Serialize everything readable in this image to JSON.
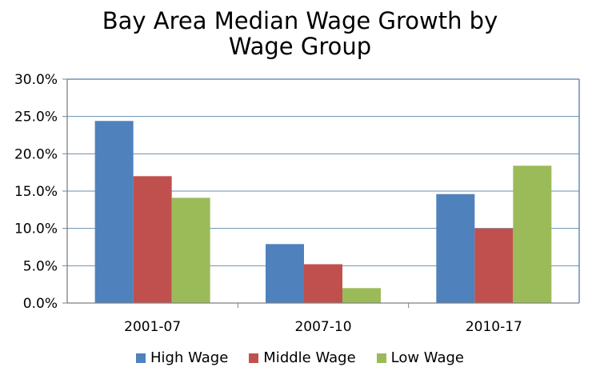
{
  "chart_data": {
    "type": "bar",
    "title_lines": [
      "Bay Area Median Wage Growth by",
      "Wage Group"
    ],
    "categories": [
      "2001-07",
      "2007-10",
      "2010-17"
    ],
    "series": [
      {
        "name": "High Wage",
        "values": [
          24.4,
          7.9,
          14.6
        ],
        "color": "#4F81BD"
      },
      {
        "name": "Middle Wage",
        "values": [
          17.0,
          5.2,
          10.0
        ],
        "color": "#C0504D"
      },
      {
        "name": "Low Wage",
        "values": [
          14.1,
          2.0,
          18.4
        ],
        "color": "#9BBB59"
      }
    ],
    "ylim": [
      0,
      30
    ],
    "yticks": [
      0,
      5,
      10,
      15,
      20,
      25,
      30
    ],
    "ytick_labels": [
      "0.0%",
      "5.0%",
      "10.0%",
      "15.0%",
      "20.0%",
      "25.0%",
      "30.0%"
    ],
    "grid": true,
    "legend_position": "bottom"
  }
}
